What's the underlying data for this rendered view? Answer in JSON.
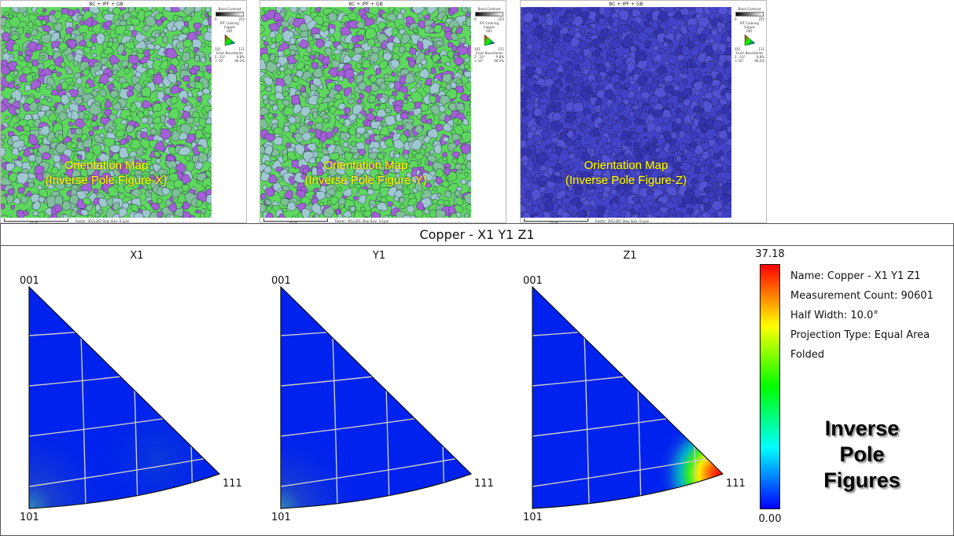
{
  "maps": [
    {
      "title": "BC + IPF + GB",
      "overlay_line1": "Orientation Map",
      "overlay_line2": "(Inverse Pole Figure-X)",
      "dominant_colors": [
        "#5dd85d",
        "#a25fd6",
        "#9ec8cf",
        "#7fbf9a"
      ]
    },
    {
      "title": "BC + IPF + GB",
      "overlay_line1": "Orientation Map",
      "overlay_line2": "(Inverse Pole Figure-Y)",
      "dominant_colors": [
        "#5dd85d",
        "#a25fd6",
        "#9ec8cf",
        "#7fbf9a"
      ]
    },
    {
      "title": "BC + IPF + GB",
      "overlay_line1": "Orientation Map",
      "overlay_line2": "(Inverse Pole Figure-Z)",
      "dominant_colors": [
        "#4343c9",
        "#3b3bbd",
        "#5252d4",
        "#3333b0"
      ]
    }
  ],
  "map_legend": {
    "band_contrast": "Band Contrast",
    "bc_min": "0",
    "bc_max": "255",
    "ipf_coloring": "IPF Coloring",
    "phase": "Copper",
    "corner_001": "001",
    "corner_101": "101",
    "corner_111": "111",
    "grain_boundaries": "Grain Boundaries",
    "gb_rows": [
      {
        "range": "2 - 10°",
        "value": "9.8%"
      },
      {
        "range": "> 10°",
        "value": "90.2%"
      }
    ]
  },
  "map_footer": {
    "scale_label": "10μm",
    "raster": "Raster: 301x301",
    "step": "Step Size: 0.1μm"
  },
  "ipf": {
    "header": "Copper - X1 Y1 Z1",
    "figures": [
      {
        "label": "X1",
        "max_at": "101",
        "max_rel": 0.2
      },
      {
        "label": "Y1",
        "max_at": "101",
        "max_rel": 0.18
      },
      {
        "label": "Z1",
        "max_at": "111",
        "max_rel": 1.0
      }
    ],
    "corners": {
      "top": "001",
      "bottom": "101",
      "right": "111"
    },
    "colorbar": {
      "max": "37.18",
      "min": "0.00",
      "colors": [
        "#0000ff",
        "#00ffff",
        "#00ff00",
        "#ffff00",
        "#ff0000"
      ]
    },
    "info": {
      "name": "Name: Copper - X1 Y1 Z1",
      "count": "Measurement Count: 90601",
      "half_width": "Half Width: 10.0°",
      "projection": "Projection Type: Equal Area",
      "folded": "Folded"
    },
    "big_label_line1": "Inverse",
    "big_label_line2": "Pole",
    "big_label_line3": "Figures"
  }
}
